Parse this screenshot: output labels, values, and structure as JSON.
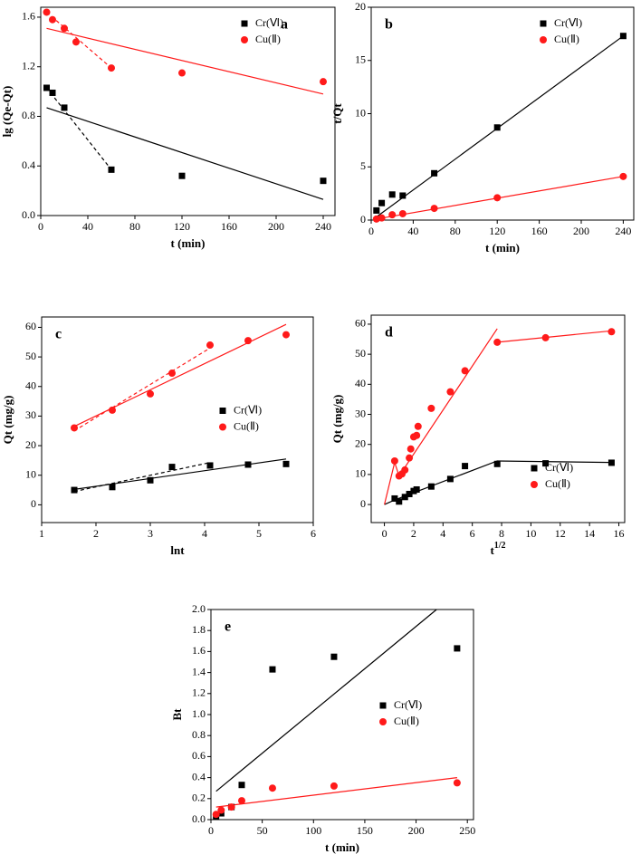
{
  "chart_data": [
    {
      "type": "scatter",
      "panel": "a",
      "letter_corner": "upper right",
      "legend": "upper right",
      "xlabel": "t (min)",
      "ylabel": "lg (Qe-Qt)",
      "xlim": [
        0,
        250
      ],
      "xticks": [
        0,
        40,
        80,
        120,
        160,
        200,
        240
      ],
      "ylim": [
        0,
        1.68
      ],
      "yticks": [
        {
          "value": 0,
          "label": "0.0"
        },
        0.4,
        0.8,
        1.2,
        1.6
      ],
      "series": [
        {
          "name": "Cr(Ⅵ)",
          "color": "#000000",
          "marker": "square",
          "x": [
            5,
            10,
            20,
            60,
            120,
            240
          ],
          "values": [
            1.03,
            0.99,
            0.87,
            0.37,
            0.32,
            0.28
          ]
        },
        {
          "name": "Cu(Ⅱ)",
          "color": "#ff1a1a",
          "marker": "circle",
          "x": [
            5,
            10,
            20,
            30,
            60,
            120,
            240
          ],
          "values": [
            1.64,
            1.58,
            1.51,
            1.4,
            1.19,
            1.15,
            1.08
          ]
        }
      ],
      "fits": [
        {
          "color": "#000000",
          "dashed": false,
          "x": [
            5,
            240
          ],
          "values": [
            0.87,
            0.13
          ]
        },
        {
          "color": "#000000",
          "dashed": true,
          "x": [
            5,
            60
          ],
          "values": [
            1.03,
            0.37
          ]
        },
        {
          "color": "#ff1a1a",
          "dashed": false,
          "x": [
            5,
            240
          ],
          "values": [
            1.51,
            0.98
          ]
        },
        {
          "color": "#ff1a1a",
          "dashed": true,
          "x": [
            5,
            60
          ],
          "values": [
            1.64,
            1.19
          ]
        }
      ]
    },
    {
      "type": "scatter",
      "panel": "b",
      "letter_corner": "upper left",
      "legend": "upper right",
      "xlabel": "t (min)",
      "ylabel": "t/Qt",
      "xlim": [
        0,
        250
      ],
      "xticks": [
        0,
        40,
        80,
        120,
        160,
        200,
        240
      ],
      "ylim": [
        0,
        20
      ],
      "yticks": [
        0,
        5,
        10,
        15,
        20
      ],
      "series": [
        {
          "name": "Cr(Ⅵ)",
          "color": "#000000",
          "marker": "square",
          "x": [
            5,
            10,
            20,
            30,
            60,
            120,
            240
          ],
          "values": [
            0.9,
            1.6,
            2.4,
            2.3,
            4.4,
            8.7,
            17.3
          ]
        },
        {
          "name": "Cu(Ⅱ)",
          "color": "#ff1a1a",
          "marker": "circle",
          "x": [
            5,
            10,
            20,
            30,
            60,
            120,
            240
          ],
          "values": [
            0.1,
            0.2,
            0.5,
            0.6,
            1.1,
            2.1,
            4.1
          ]
        }
      ],
      "fits": [
        {
          "color": "#000000",
          "dashed": false,
          "x": [
            5,
            240
          ],
          "values": [
            0.3,
            17.3
          ]
        },
        {
          "color": "#ff1a1a",
          "dashed": false,
          "x": [
            5,
            240
          ],
          "values": [
            0.1,
            4.1
          ]
        }
      ]
    },
    {
      "type": "scatter",
      "panel": "c",
      "letter_corner": "upper left",
      "legend": "center right",
      "xlabel": "lnt",
      "ylabel": "Qt (mg/g)",
      "xlim": [
        1,
        6
      ],
      "xticks": [
        1,
        2,
        3,
        4,
        5,
        6
      ],
      "ylim": [
        -6,
        63.5
      ],
      "yticks": [
        0,
        10,
        20,
        30,
        40,
        50,
        60
      ],
      "series": [
        {
          "name": "Cr(Ⅵ)",
          "color": "#000000",
          "marker": "square",
          "x": [
            1.6,
            2.3,
            3.0,
            3.4,
            4.1,
            4.8,
            5.5
          ],
          "values": [
            5,
            6,
            8.3,
            12.8,
            13.3,
            13.6,
            13.8
          ]
        },
        {
          "name": "Cu(Ⅱ)",
          "color": "#ff1a1a",
          "marker": "circle",
          "x": [
            1.6,
            2.3,
            3.0,
            3.4,
            4.1,
            4.8,
            5.5
          ],
          "values": [
            26,
            32,
            37.5,
            44.5,
            54,
            55.5,
            57.5
          ]
        }
      ],
      "fits": [
        {
          "color": "#000000",
          "dashed": false,
          "x": [
            1.6,
            5.5
          ],
          "values": [
            5.2,
            15.5
          ]
        },
        {
          "color": "#000000",
          "dashed": true,
          "x": [
            1.6,
            4.1
          ],
          "values": [
            4.5,
            14.3
          ]
        },
        {
          "color": "#ff1a1a",
          "dashed": false,
          "x": [
            1.6,
            5.5
          ],
          "values": [
            26.5,
            61
          ]
        },
        {
          "color": "#ff1a1a",
          "dashed": true,
          "x": [
            1.6,
            4.1
          ],
          "values": [
            25,
            53
          ]
        }
      ]
    },
    {
      "type": "scatter",
      "panel": "d",
      "letter_corner": "upper left",
      "legend": "lower right",
      "xlabel": "t",
      "xlabel_sup": "1/2",
      "ylabel": "Qt (mg/g)",
      "xlim": [
        -0.9,
        16.4
      ],
      "xticks": [
        0,
        2,
        4,
        6,
        8,
        10,
        12,
        14,
        16
      ],
      "ylim": [
        -6,
        63
      ],
      "yticks": [
        0,
        10,
        20,
        30,
        40,
        50,
        60
      ],
      "series": [
        {
          "name": "Cr(Ⅵ)",
          "color": "#000000",
          "marker": "square",
          "x": [
            0.7,
            1,
            1.4,
            1.7,
            2,
            2.2,
            3.2,
            4.5,
            5.5,
            7.7,
            11,
            15.5
          ],
          "values": [
            2,
            1,
            2.5,
            3.5,
            4.5,
            5,
            6,
            8.5,
            12.8,
            13.5,
            13.7,
            13.9
          ]
        },
        {
          "name": "Cu(Ⅱ)",
          "color": "#ff1a1a",
          "marker": "circle",
          "x": [
            0.7,
            1,
            1.2,
            1.4,
            1.7,
            1.8,
            2,
            2.2,
            2.3,
            3.2,
            4.5,
            5.5,
            7.7,
            11,
            15.5
          ],
          "values": [
            14.5,
            9.5,
            10.2,
            11.5,
            15.5,
            18.5,
            22.5,
            23,
            26,
            32,
            37.5,
            44.5,
            54,
            55.5,
            57.5
          ]
        }
      ],
      "fits": [
        {
          "color": "#000000",
          "dashed": false,
          "x": [
            0,
            0.7,
            7.7,
            15.5
          ],
          "values": [
            0,
            1.5,
            14.5,
            14
          ]
        },
        {
          "color": "#ff1a1a",
          "dashed": false,
          "x": [
            0,
            0.7,
            1,
            7.7,
            null,
            7.7,
            15.5
          ],
          "values": [
            0,
            14,
            9.5,
            58.5,
            null,
            54,
            57.8
          ]
        }
      ]
    },
    {
      "type": "scatter",
      "panel": "e",
      "letter_corner": "upper left",
      "legend": "center right",
      "xlabel": "t (min)",
      "ylabel": "Bt",
      "xlim": [
        0,
        256
      ],
      "xticks": [
        0,
        50,
        100,
        150,
        200,
        250
      ],
      "ylim": [
        0,
        2.0
      ],
      "yticks": [
        {
          "value": 0,
          "label": "0.0"
        },
        0.2,
        0.4,
        0.6,
        0.8,
        {
          "value": 1,
          "label": "1.0"
        },
        1.2,
        1.4,
        1.6,
        1.8,
        {
          "value": 2,
          "label": "2.0"
        }
      ],
      "series": [
        {
          "name": "Cr(Ⅵ)",
          "color": "#000000",
          "marker": "square",
          "x": [
            5,
            10,
            20,
            30,
            60,
            120,
            240
          ],
          "values": [
            0.03,
            0.06,
            0.12,
            0.33,
            1.43,
            1.55,
            1.63
          ]
        },
        {
          "name": "Cu(Ⅱ)",
          "color": "#ff1a1a",
          "marker": "circle",
          "x": [
            5,
            10,
            20,
            30,
            60,
            120,
            240
          ],
          "values": [
            0.05,
            0.09,
            0.12,
            0.18,
            0.3,
            0.32,
            0.35
          ]
        }
      ],
      "fits": [
        {
          "color": "#000000",
          "dashed": false,
          "x": [
            5,
            220
          ],
          "values": [
            0.27,
            2.0
          ]
        },
        {
          "color": "#ff1a1a",
          "dashed": false,
          "x": [
            5,
            240
          ],
          "values": [
            0.12,
            0.4
          ]
        }
      ]
    }
  ]
}
